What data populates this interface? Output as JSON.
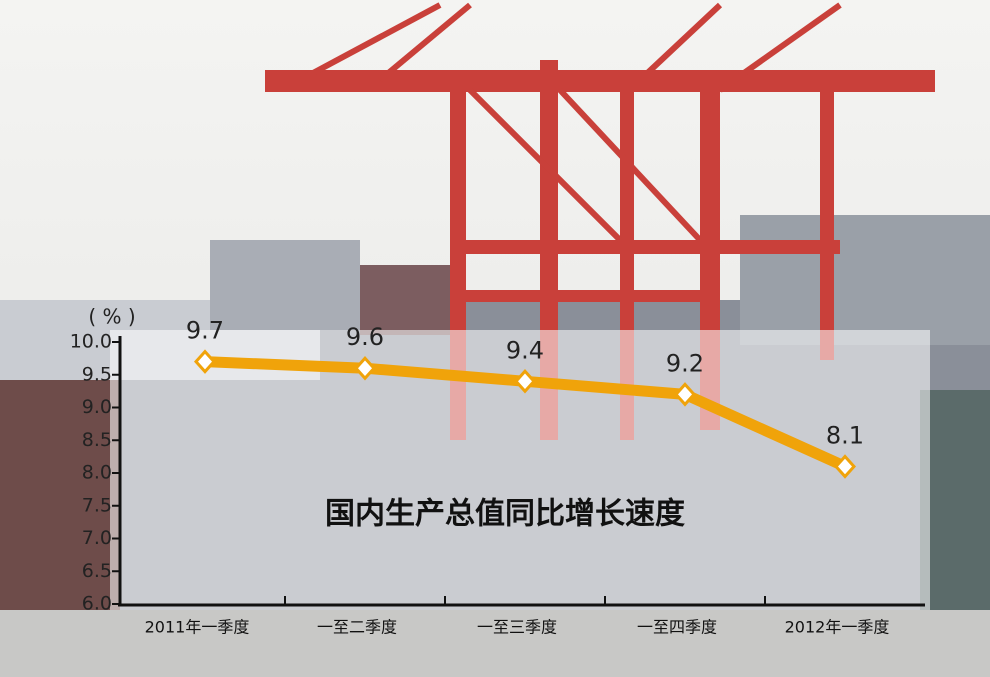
{
  "chart_data": {
    "type": "line",
    "title": "国内生产总值同比增长速度",
    "y_label": "( % )",
    "categories": [
      "2011年一季度",
      "一至二季度",
      "一至三季度",
      "一至四季度",
      "2012年一季度"
    ],
    "values": [
      9.7,
      9.6,
      9.4,
      9.2,
      8.1
    ],
    "color": "#f0a30a",
    "ylim": [
      6.0,
      10.0
    ],
    "yticks": [
      {
        "value": 6.0,
        "label": "6.0"
      },
      6.5,
      {
        "value": 7.0,
        "label": "7.0"
      },
      7.5,
      {
        "value": 8.0,
        "label": "8.0"
      },
      8.5,
      {
        "value": 9.0,
        "label": "9.0"
      },
      9.5,
      {
        "value": 10.0,
        "label": "10.0"
      }
    ]
  }
}
